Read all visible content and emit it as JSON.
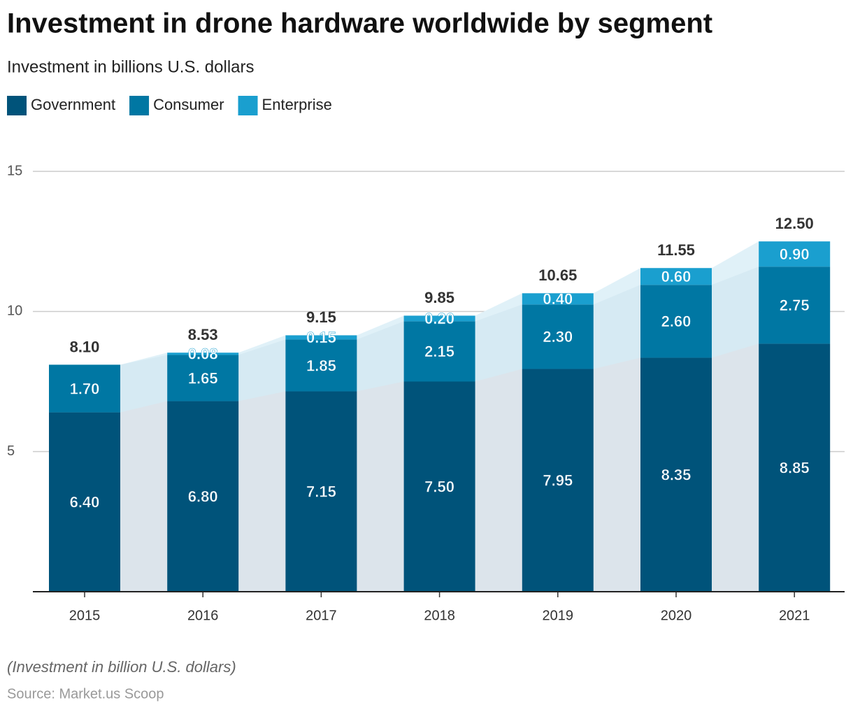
{
  "chart_data": {
    "type": "stacked-bar",
    "title": "Investment in drone hardware worldwide by segment",
    "subtitle": "Investment in billions U.S. dollars",
    "categories": [
      "2015",
      "2016",
      "2017",
      "2018",
      "2019",
      "2020",
      "2021"
    ],
    "series": [
      {
        "name": "Government",
        "color": "#00537a",
        "values": [
          6.4,
          6.8,
          7.15,
          7.5,
          7.95,
          8.35,
          8.85
        ],
        "value_labels": [
          "6.40",
          "6.80",
          "7.15",
          "7.50",
          "7.95",
          "8.35",
          "8.85"
        ]
      },
      {
        "name": "Consumer",
        "color": "#0077a3",
        "values": [
          1.7,
          1.65,
          1.85,
          2.15,
          2.3,
          2.6,
          2.75
        ],
        "value_labels": [
          "1.70",
          "1.65",
          "1.85",
          "2.15",
          "2.30",
          "2.60",
          "2.75"
        ]
      },
      {
        "name": "Enterprise",
        "color": "#1a9fcf",
        "values": [
          null,
          0.08,
          0.15,
          0.2,
          0.4,
          0.6,
          0.9
        ],
        "value_labels": [
          null,
          "0.08",
          "0.15",
          "0.20",
          "0.40",
          "0.60",
          "0.90"
        ]
      }
    ],
    "totals": {
      "values": [
        8.1,
        8.53,
        9.15,
        9.85,
        10.65,
        11.55,
        12.5
      ],
      "value_labels": [
        "8.10",
        "8.53",
        "9.15",
        "9.85",
        "10.65",
        "11.55",
        "12.50"
      ]
    },
    "ylim": [
      0,
      15
    ],
    "yticks": [
      5,
      10,
      15
    ],
    "grid": true,
    "note": "(Investment in billion U.S. dollars)",
    "source": "Source: Market.us Scoop"
  }
}
